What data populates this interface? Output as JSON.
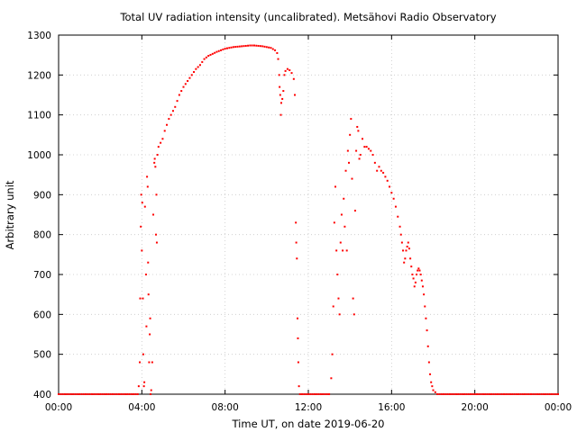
{
  "chart_data": {
    "type": "scatter",
    "title": "Total UV radiation intensity (uncalibrated). Metsähovi Radio Observatory",
    "xlabel": "Time UT, on date 2019-06-20",
    "ylabel": "Arbitrary unit",
    "xlim": [
      "00:00",
      "24:00"
    ],
    "ylim": [
      400,
      1300
    ],
    "x_ticks": [
      "00:00",
      "04:00",
      "08:00",
      "12:00",
      "16:00",
      "20:00",
      "00:00"
    ],
    "y_ticks": [
      400,
      500,
      600,
      700,
      800,
      900,
      1000,
      1100,
      1200,
      1300
    ],
    "grid": true,
    "marker_color": "#ff0000",
    "series": [
      {
        "x_units": "hours UT",
        "points": [
          [
            0.0,
            400
          ],
          [
            0.5,
            400
          ],
          [
            1.0,
            400
          ],
          [
            1.5,
            400
          ],
          [
            2.0,
            400
          ],
          [
            2.5,
            400
          ],
          [
            3.0,
            400
          ],
          [
            3.5,
            400
          ],
          [
            3.8,
            400
          ],
          [
            3.85,
            420
          ],
          [
            3.9,
            480
          ],
          [
            3.92,
            640
          ],
          [
            3.95,
            820
          ],
          [
            3.97,
            900
          ],
          [
            4.0,
            760
          ],
          [
            4.02,
            880
          ],
          [
            4.05,
            640
          ],
          [
            4.07,
            500
          ],
          [
            4.1,
            420
          ],
          [
            4.12,
            430
          ],
          [
            4.15,
            870
          ],
          [
            4.2,
            700
          ],
          [
            4.22,
            570
          ],
          [
            4.25,
            945
          ],
          [
            4.28,
            920
          ],
          [
            4.3,
            730
          ],
          [
            4.32,
            650
          ],
          [
            4.35,
            480
          ],
          [
            4.38,
            550
          ],
          [
            4.4,
            590
          ],
          [
            4.42,
            400
          ],
          [
            4.45,
            410
          ],
          [
            4.5,
            480
          ],
          [
            4.55,
            850
          ],
          [
            4.6,
            980
          ],
          [
            4.62,
            990
          ],
          [
            4.65,
            970
          ],
          [
            4.68,
            800
          ],
          [
            4.7,
            900
          ],
          [
            4.72,
            780
          ],
          [
            4.75,
            1000
          ],
          [
            4.8,
            1020
          ],
          [
            4.9,
            1030
          ],
          [
            5.0,
            1040
          ],
          [
            5.1,
            1060
          ],
          [
            5.2,
            1075
          ],
          [
            5.3,
            1090
          ],
          [
            5.4,
            1100
          ],
          [
            5.6,
            1120
          ],
          [
            5.8,
            1150
          ],
          [
            6.0,
            1170
          ],
          [
            6.2,
            1185
          ],
          [
            6.4,
            1200
          ],
          [
            6.6,
            1215
          ],
          [
            6.8,
            1225
          ],
          [
            7.0,
            1240
          ],
          [
            7.2,
            1248
          ],
          [
            7.4,
            1253
          ],
          [
            7.6,
            1258
          ],
          [
            7.8,
            1262
          ],
          [
            8.0,
            1266
          ],
          [
            8.2,
            1268
          ],
          [
            8.4,
            1270
          ],
          [
            8.6,
            1271
          ],
          [
            8.8,
            1272
          ],
          [
            9.0,
            1273
          ],
          [
            9.2,
            1274
          ],
          [
            9.4,
            1274
          ],
          [
            9.6,
            1273
          ],
          [
            9.8,
            1272
          ],
          [
            10.0,
            1270
          ],
          [
            10.2,
            1268
          ],
          [
            10.4,
            1262
          ],
          [
            10.5,
            1255
          ],
          [
            10.55,
            1240
          ],
          [
            10.6,
            1200
          ],
          [
            10.62,
            1170
          ],
          [
            10.65,
            1150
          ],
          [
            10.68,
            1100
          ],
          [
            10.7,
            1130
          ],
          [
            10.75,
            1140
          ],
          [
            10.8,
            1160
          ],
          [
            10.85,
            1200
          ],
          [
            10.9,
            1210
          ],
          [
            11.0,
            1215
          ],
          [
            11.1,
            1212
          ],
          [
            11.2,
            1205
          ],
          [
            11.3,
            1190
          ],
          [
            11.35,
            1150
          ],
          [
            11.4,
            830
          ],
          [
            11.42,
            780
          ],
          [
            11.45,
            740
          ],
          [
            11.48,
            590
          ],
          [
            11.5,
            540
          ],
          [
            11.52,
            480
          ],
          [
            11.55,
            420
          ],
          [
            11.6,
            400
          ],
          [
            12.0,
            400
          ],
          [
            12.5,
            400
          ],
          [
            13.0,
            400
          ],
          [
            13.1,
            440
          ],
          [
            13.15,
            500
          ],
          [
            13.2,
            620
          ],
          [
            13.25,
            830
          ],
          [
            13.3,
            920
          ],
          [
            13.35,
            760
          ],
          [
            13.4,
            700
          ],
          [
            13.45,
            640
          ],
          [
            13.5,
            600
          ],
          [
            13.55,
            780
          ],
          [
            13.6,
            850
          ],
          [
            13.65,
            760
          ],
          [
            13.7,
            890
          ],
          [
            13.75,
            820
          ],
          [
            13.8,
            960
          ],
          [
            13.85,
            760
          ],
          [
            13.9,
            1010
          ],
          [
            13.95,
            980
          ],
          [
            14.0,
            1050
          ],
          [
            14.05,
            1090
          ],
          [
            14.1,
            940
          ],
          [
            14.15,
            640
          ],
          [
            14.2,
            600
          ],
          [
            14.25,
            860
          ],
          [
            14.3,
            1010
          ],
          [
            14.35,
            1070
          ],
          [
            14.4,
            1060
          ],
          [
            14.45,
            990
          ],
          [
            14.5,
            1000
          ],
          [
            14.6,
            1040
          ],
          [
            14.7,
            1020
          ],
          [
            14.8,
            1020
          ],
          [
            14.9,
            1015
          ],
          [
            15.0,
            1010
          ],
          [
            15.1,
            1000
          ],
          [
            15.2,
            980
          ],
          [
            15.3,
            960
          ],
          [
            15.4,
            970
          ],
          [
            15.5,
            960
          ],
          [
            15.6,
            955
          ],
          [
            15.7,
            945
          ],
          [
            15.8,
            935
          ],
          [
            15.9,
            920
          ],
          [
            16.0,
            905
          ],
          [
            16.1,
            890
          ],
          [
            16.2,
            870
          ],
          [
            16.3,
            845
          ],
          [
            16.4,
            820
          ],
          [
            16.45,
            800
          ],
          [
            16.5,
            780
          ],
          [
            16.55,
            760
          ],
          [
            16.6,
            730
          ],
          [
            16.65,
            740
          ],
          [
            16.7,
            760
          ],
          [
            16.75,
            770
          ],
          [
            16.8,
            780
          ],
          [
            16.85,
            765
          ],
          [
            16.9,
            740
          ],
          [
            16.95,
            720
          ],
          [
            17.0,
            700
          ],
          [
            17.05,
            690
          ],
          [
            17.1,
            670
          ],
          [
            17.15,
            680
          ],
          [
            17.2,
            700
          ],
          [
            17.25,
            710
          ],
          [
            17.3,
            715
          ],
          [
            17.35,
            710
          ],
          [
            17.4,
            700
          ],
          [
            17.45,
            685
          ],
          [
            17.5,
            670
          ],
          [
            17.55,
            650
          ],
          [
            17.6,
            620
          ],
          [
            17.65,
            590
          ],
          [
            17.7,
            560
          ],
          [
            17.75,
            520
          ],
          [
            17.8,
            480
          ],
          [
            17.85,
            450
          ],
          [
            17.9,
            430
          ],
          [
            17.95,
            420
          ],
          [
            18.0,
            410
          ],
          [
            18.1,
            405
          ],
          [
            18.2,
            400
          ],
          [
            18.5,
            400
          ],
          [
            19.0,
            400
          ],
          [
            19.5,
            400
          ],
          [
            20.0,
            400
          ],
          [
            20.5,
            400
          ],
          [
            21.0,
            400
          ],
          [
            21.5,
            400
          ],
          [
            22.0,
            400
          ],
          [
            22.5,
            400
          ],
          [
            23.0,
            400
          ],
          [
            23.5,
            400
          ],
          [
            24.0,
            400
          ]
        ]
      }
    ]
  }
}
